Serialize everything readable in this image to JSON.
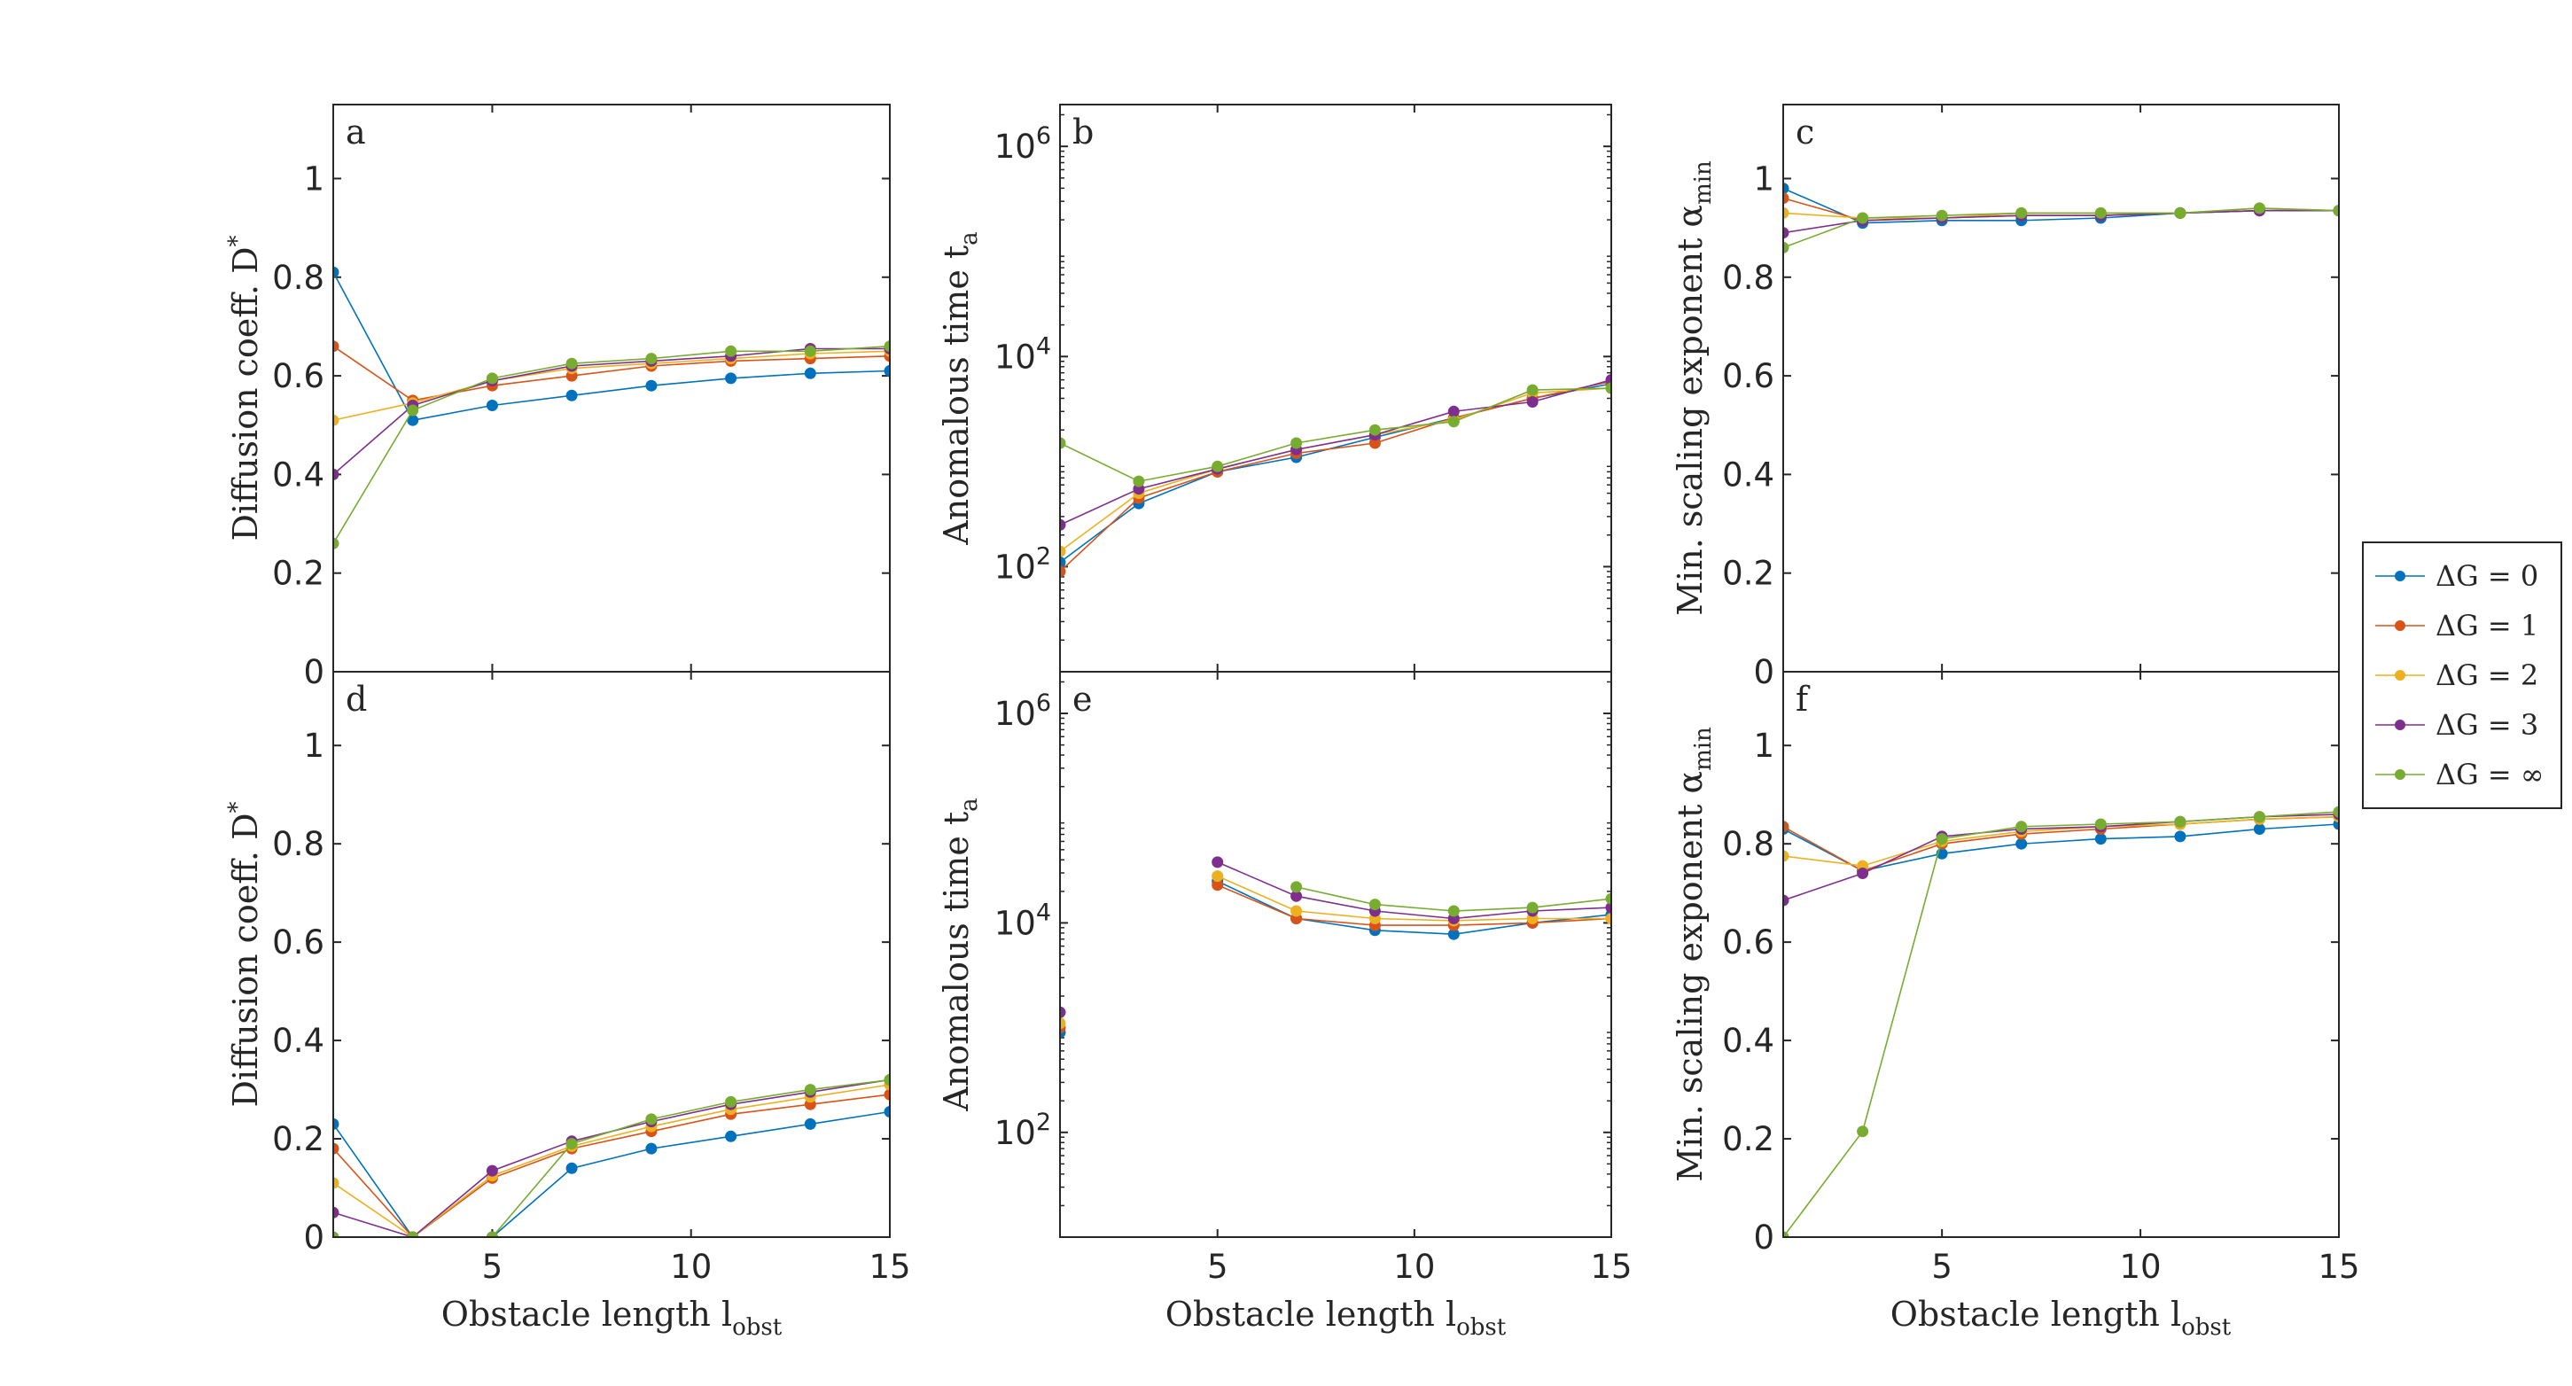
{
  "colors": {
    "dg0": "#0072BD",
    "dg1": "#D95319",
    "dg2": "#EDB120",
    "dg3": "#7E2F8E",
    "dginf": "#77AC30",
    "axis": "#262626"
  },
  "legend": {
    "placement": "right",
    "items": [
      "ΔG = 0",
      "ΔG = 1",
      "ΔG = 2",
      "ΔG = 3",
      "ΔG = ∞"
    ]
  },
  "axes_labels": {
    "xlabel": "Obstacle length l",
    "xlabel_sub": "obst",
    "diffusion_label": "Diffusion coeff. D",
    "diffusion_sup": "*",
    "anomalous_label": "Anomalous time t",
    "anomalous_sub": "a",
    "scaling_label": "Min. scaling exponent α",
    "scaling_sub": "min"
  },
  "chart_data": [
    {
      "panel": "a",
      "type": "line",
      "scale": "linear",
      "xlim": [
        1,
        15
      ],
      "ylim": [
        0,
        1.15
      ],
      "yticks": [
        0,
        0.2,
        0.4,
        0.6,
        0.8,
        1
      ],
      "ytick_labels": [
        "0",
        "0.2",
        "0.4",
        "0.6",
        "0.8",
        "1"
      ],
      "x": [
        1,
        3,
        5,
        7,
        9,
        11,
        13,
        15
      ],
      "series": [
        {
          "name": "ΔG = 0",
          "values": [
            0.81,
            0.51,
            0.54,
            0.56,
            0.58,
            0.595,
            0.605,
            0.61
          ]
        },
        {
          "name": "ΔG = 1",
          "values": [
            0.66,
            0.55,
            0.58,
            0.6,
            0.62,
            0.63,
            0.635,
            0.64
          ]
        },
        {
          "name": "ΔG = 2",
          "values": [
            0.51,
            0.545,
            0.59,
            0.615,
            0.625,
            0.635,
            0.645,
            0.65
          ]
        },
        {
          "name": "ΔG = 3",
          "values": [
            0.4,
            0.54,
            0.59,
            0.62,
            0.63,
            0.64,
            0.655,
            0.655
          ]
        },
        {
          "name": "ΔG = ∞",
          "values": [
            0.26,
            0.53,
            0.595,
            0.625,
            0.635,
            0.65,
            0.65,
            0.66
          ]
        }
      ]
    },
    {
      "panel": "b",
      "type": "line",
      "scale": "log",
      "xlim": [
        1,
        15
      ],
      "ylim": [
        10,
        2500000
      ],
      "yticks": [
        100,
        10000,
        1000000
      ],
      "x": [
        1,
        3,
        5,
        7,
        9,
        11,
        13,
        15
      ],
      "series": [
        {
          "name": "ΔG = 0",
          "values": [
            110,
            400,
            800,
            1100,
            1700,
            2600,
            4000,
            5500
          ]
        },
        {
          "name": "ΔG = 1",
          "values": [
            90,
            450,
            800,
            1200,
            1500,
            2600,
            4000,
            5800
          ]
        },
        {
          "name": "ΔG = 2",
          "values": [
            140,
            500,
            850,
            1300,
            1800,
            2500,
            4500,
            5000
          ]
        },
        {
          "name": "ΔG = 3",
          "values": [
            250,
            550,
            850,
            1300,
            1800,
            3000,
            3700,
            6000
          ]
        },
        {
          "name": "ΔG = ∞",
          "values": [
            1500,
            650,
            900,
            1500,
            2000,
            2400,
            4800,
            5000
          ]
        }
      ]
    },
    {
      "panel": "c",
      "type": "line",
      "scale": "linear",
      "xlim": [
        1,
        15
      ],
      "ylim": [
        0,
        1.15
      ],
      "yticks": [
        0,
        0.2,
        0.4,
        0.6,
        0.8,
        1
      ],
      "ytick_labels": [
        "0",
        "0.2",
        "0.4",
        "0.6",
        "0.8",
        "1"
      ],
      "x": [
        1,
        3,
        5,
        7,
        9,
        11,
        13,
        15
      ],
      "series": [
        {
          "name": "ΔG = 0",
          "values": [
            0.98,
            0.91,
            0.915,
            0.915,
            0.92,
            0.93,
            0.935,
            0.935
          ]
        },
        {
          "name": "ΔG = 1",
          "values": [
            0.96,
            0.915,
            0.92,
            0.925,
            0.925,
            0.93,
            0.935,
            0.935
          ]
        },
        {
          "name": "ΔG = 2",
          "values": [
            0.93,
            0.92,
            0.92,
            0.93,
            0.93,
            0.93,
            0.94,
            0.935
          ]
        },
        {
          "name": "ΔG = 3",
          "values": [
            0.89,
            0.915,
            0.92,
            0.925,
            0.925,
            0.93,
            0.935,
            0.935
          ]
        },
        {
          "name": "ΔG = ∞",
          "values": [
            0.86,
            0.92,
            0.925,
            0.93,
            0.93,
            0.93,
            0.94,
            0.935
          ]
        }
      ]
    },
    {
      "panel": "d",
      "type": "line",
      "scale": "linear",
      "xlim": [
        1,
        15
      ],
      "ylim": [
        0,
        1.15
      ],
      "xticks": [
        5,
        10,
        15
      ],
      "xtick_labels": [
        "5",
        "10",
        "15"
      ],
      "yticks": [
        0,
        0.2,
        0.4,
        0.6,
        0.8,
        1
      ],
      "ytick_labels": [
        "0",
        "0.2",
        "0.4",
        "0.6",
        "0.8",
        "1"
      ],
      "x": [
        1,
        3,
        5,
        7,
        9,
        11,
        13,
        15
      ],
      "series": [
        {
          "name": "ΔG = 0",
          "values": [
            0.23,
            0,
            0,
            0.14,
            0.18,
            0.205,
            0.23,
            0.255
          ]
        },
        {
          "name": "ΔG = 1",
          "values": [
            0.18,
            0,
            0.12,
            0.18,
            0.215,
            0.25,
            0.27,
            0.29
          ]
        },
        {
          "name": "ΔG = 2",
          "values": [
            0.11,
            0,
            0.125,
            0.185,
            0.225,
            0.26,
            0.285,
            0.31
          ]
        },
        {
          "name": "ΔG = 3",
          "values": [
            0.05,
            0,
            0.135,
            0.195,
            0.235,
            0.27,
            0.295,
            0.32
          ]
        },
        {
          "name": "ΔG = ∞",
          "values": [
            0,
            0,
            0,
            0.19,
            0.24,
            0.275,
            0.3,
            0.32
          ]
        }
      ]
    },
    {
      "panel": "e",
      "type": "line",
      "scale": "log",
      "xlim": [
        1,
        15
      ],
      "ylim": [
        10,
        2500000
      ],
      "xticks": [
        5,
        10,
        15
      ],
      "xtick_labels": [
        "5",
        "10",
        "15"
      ],
      "yticks": [
        100,
        10000,
        1000000
      ],
      "x": [
        1,
        3,
        5,
        7,
        9,
        11,
        13,
        15
      ],
      "series": [
        {
          "name": "ΔG = 0",
          "values": [
            900,
            null,
            25000,
            11000,
            8500,
            7800,
            10000,
            12000
          ]
        },
        {
          "name": "ΔG = 1",
          "values": [
            1000,
            null,
            23000,
            11000,
            9500,
            9500,
            10000,
            11000
          ]
        },
        {
          "name": "ΔG = 2",
          "values": [
            1100,
            null,
            28000,
            13000,
            11000,
            10500,
            11000,
            11000
          ]
        },
        {
          "name": "ΔG = 3",
          "values": [
            1400,
            null,
            38000,
            18000,
            13000,
            11000,
            13000,
            14000
          ]
        },
        {
          "name": "ΔG = ∞",
          "values": [
            null,
            null,
            null,
            22000,
            15000,
            13000,
            14000,
            17000
          ]
        }
      ]
    },
    {
      "panel": "f",
      "type": "line",
      "scale": "linear",
      "xlim": [
        1,
        15
      ],
      "ylim": [
        0,
        1.15
      ],
      "xticks": [
        5,
        10,
        15
      ],
      "xtick_labels": [
        "5",
        "10",
        "15"
      ],
      "yticks": [
        0,
        0.2,
        0.4,
        0.6,
        0.8,
        1
      ],
      "ytick_labels": [
        "0",
        "0.2",
        "0.4",
        "0.6",
        "0.8",
        "1"
      ],
      "x": [
        1,
        3,
        5,
        7,
        9,
        11,
        13,
        15
      ],
      "series": [
        {
          "name": "ΔG = 0",
          "values": [
            0.83,
            0.745,
            0.78,
            0.8,
            0.81,
            0.815,
            0.83,
            0.84
          ]
        },
        {
          "name": "ΔG = 1",
          "values": [
            0.835,
            0.745,
            0.8,
            0.82,
            0.83,
            0.84,
            0.85,
            0.855
          ]
        },
        {
          "name": "ΔG = 2",
          "values": [
            0.775,
            0.755,
            0.805,
            0.825,
            0.835,
            0.84,
            0.85,
            0.855
          ]
        },
        {
          "name": "ΔG = 3",
          "values": [
            0.685,
            0.74,
            0.815,
            0.83,
            0.835,
            0.845,
            0.855,
            0.86
          ]
        },
        {
          "name": "ΔG = ∞",
          "values": [
            0,
            0.215,
            0.81,
            0.835,
            0.84,
            0.845,
            0.855,
            0.865
          ]
        }
      ]
    }
  ]
}
